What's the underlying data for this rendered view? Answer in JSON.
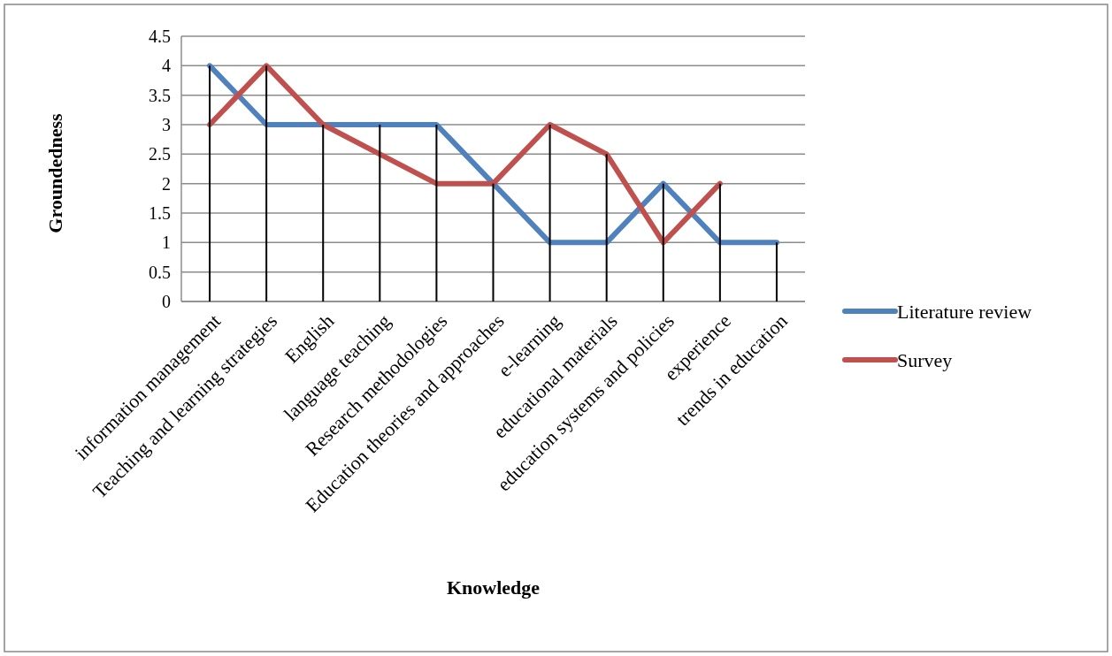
{
  "chart_data": {
    "type": "line",
    "xlabel": "Knowledge",
    "ylabel": "Groundedness",
    "categories": [
      "information management",
      "Teaching and learning strategies",
      "English",
      "language teaching",
      "Research methodologies",
      "Education theories and approaches",
      "e-learning",
      "educational materials",
      "education systems and policies",
      "experience",
      "trends in education"
    ],
    "series": [
      {
        "name": "Literature review",
        "color": "#4f81bd",
        "values": [
          4,
          3,
          3,
          3,
          3,
          2,
          1,
          1,
          2,
          1,
          1
        ]
      },
      {
        "name": "Survey",
        "color": "#c0504d",
        "values": [
          3,
          4,
          3,
          2.5,
          2,
          2,
          3,
          2.5,
          1,
          2,
          null
        ]
      },
      {
        "type": "bar",
        "color": "#000000",
        "values": [
          4,
          4,
          3,
          3,
          3,
          2,
          3,
          2.5,
          2,
          2,
          1
        ]
      }
    ],
    "ylim": [
      0,
      4.5
    ],
    "yticks": [
      0,
      0.5,
      1,
      1.5,
      2,
      2.5,
      3,
      3.5,
      4,
      4.5
    ],
    "grid": "y",
    "legend": "right",
    "marker": "none",
    "line_style": "solid"
  }
}
